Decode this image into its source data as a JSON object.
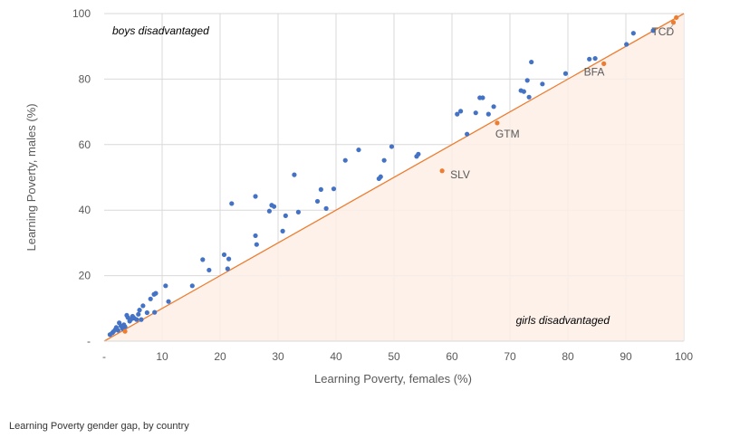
{
  "caption": "Learning Poverty gender gap, by country",
  "chart_data": {
    "type": "scatter",
    "xlabel": "Learning Poverty, females (%)",
    "ylabel": "Learning Poverty, males (%)",
    "xlim": [
      0,
      100
    ],
    "ylim": [
      0,
      100
    ],
    "x_ticks": [
      "-",
      "10",
      "20",
      "30",
      "40",
      "50",
      "60",
      "70",
      "80",
      "90",
      "100"
    ],
    "y_ticks": [
      "-",
      "20",
      "40",
      "60",
      "80",
      "100"
    ],
    "grid": true,
    "annotations": {
      "boys_region": "boys disadvantaged",
      "girls_region": "girls disadvantaged"
    },
    "colors": {
      "blue": "#4472C4",
      "orange": "#ED7D31",
      "diagonal": "#ED7D31",
      "shade": "#FDEEE6",
      "grid": "#D9D9D9"
    },
    "labels": [
      {
        "text": "TCD",
        "x": 98.2,
        "y": 97.3
      },
      {
        "text": "BFA",
        "x": 86.2,
        "y": 84.7
      },
      {
        "text": "GTM",
        "x": 67.8,
        "y": 66.6
      },
      {
        "text": "SLV",
        "x": 58.3,
        "y": 52.0
      }
    ],
    "series": [
      {
        "color": "blue",
        "points": [
          [
            1.0,
            2.0
          ],
          [
            1.4,
            2.5
          ],
          [
            1.6,
            2.9
          ],
          [
            1.9,
            3.5
          ],
          [
            2.1,
            4.2
          ],
          [
            2.4,
            3.3
          ],
          [
            2.6,
            5.6
          ],
          [
            2.9,
            4.6
          ],
          [
            3.2,
            3.8
          ],
          [
            3.4,
            5.0
          ],
          [
            3.6,
            4.4
          ],
          [
            3.9,
            7.9
          ],
          [
            4.1,
            7.2
          ],
          [
            4.4,
            6.1
          ],
          [
            4.6,
            6.6
          ],
          [
            4.9,
            7.6
          ],
          [
            5.2,
            7.0
          ],
          [
            5.6,
            6.6
          ],
          [
            5.9,
            8.2
          ],
          [
            6.1,
            9.5
          ],
          [
            6.4,
            6.6
          ],
          [
            6.7,
            10.8
          ],
          [
            7.4,
            8.7
          ],
          [
            8.0,
            12.9
          ],
          [
            8.6,
            14.3
          ],
          [
            8.9,
            14.6
          ],
          [
            8.7,
            8.8
          ],
          [
            10.6,
            16.9
          ],
          [
            11.1,
            12.1
          ],
          [
            15.2,
            16.9
          ],
          [
            17.0,
            24.9
          ],
          [
            18.1,
            21.7
          ],
          [
            20.7,
            26.4
          ],
          [
            21.5,
            25.1
          ],
          [
            21.3,
            22.1
          ],
          [
            22.0,
            42.0
          ],
          [
            26.1,
            44.2
          ],
          [
            26.1,
            32.2
          ],
          [
            26.3,
            29.5
          ],
          [
            28.5,
            39.7
          ],
          [
            28.9,
            41.5
          ],
          [
            29.3,
            41.1
          ],
          [
            30.8,
            33.6
          ],
          [
            31.3,
            38.3
          ],
          [
            32.8,
            50.8
          ],
          [
            33.5,
            39.4
          ],
          [
            36.8,
            42.7
          ],
          [
            37.4,
            46.3
          ],
          [
            38.3,
            40.5
          ],
          [
            39.6,
            46.5
          ],
          [
            41.6,
            55.2
          ],
          [
            43.9,
            58.4
          ],
          [
            47.4,
            49.6
          ],
          [
            47.7,
            50.2
          ],
          [
            48.3,
            55.2
          ],
          [
            49.6,
            59.4
          ],
          [
            53.9,
            56.4
          ],
          [
            54.2,
            57.1
          ],
          [
            60.9,
            69.3
          ],
          [
            61.5,
            70.2
          ],
          [
            62.6,
            63.2
          ],
          [
            64.1,
            69.7
          ],
          [
            64.8,
            74.3
          ],
          [
            65.3,
            74.3
          ],
          [
            66.3,
            69.3
          ],
          [
            67.2,
            71.6
          ],
          [
            71.9,
            76.5
          ],
          [
            72.4,
            76.2
          ],
          [
            73.0,
            79.6
          ],
          [
            73.7,
            85.2
          ],
          [
            73.3,
            74.5
          ],
          [
            75.6,
            78.5
          ],
          [
            79.6,
            81.7
          ],
          [
            83.7,
            86.1
          ],
          [
            84.7,
            86.3
          ],
          [
            90.1,
            90.6
          ],
          [
            91.3,
            94.0
          ],
          [
            94.7,
            94.8
          ]
        ]
      },
      {
        "color": "orange",
        "points": [
          [
            3.6,
            3.0
          ],
          [
            58.3,
            52.0
          ],
          [
            67.8,
            66.6
          ],
          [
            86.2,
            84.7
          ],
          [
            98.2,
            97.3
          ],
          [
            98.7,
            98.8
          ]
        ]
      }
    ]
  }
}
